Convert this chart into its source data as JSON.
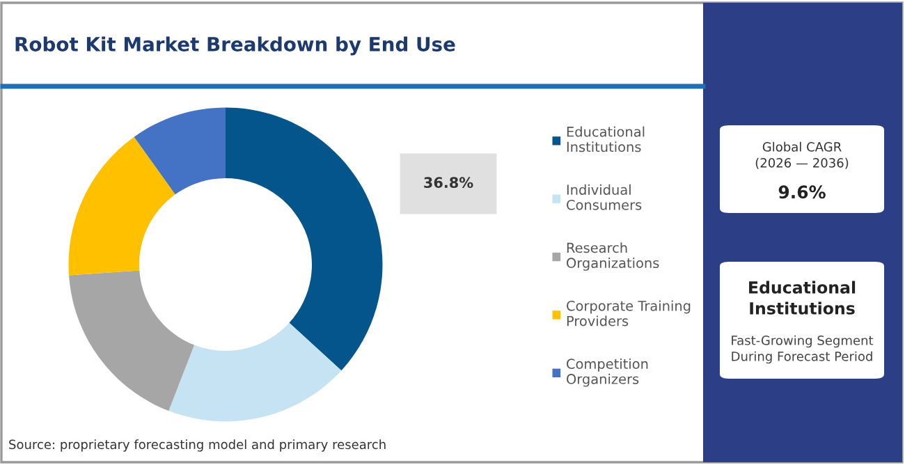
{
  "chart_data": {
    "type": "donut",
    "title": "Robot Kit Market Breakdown by End Use",
    "categories": [
      "Educational Institutions",
      "Individual Consumers",
      "Research Organizations",
      "Corporate Training Providers",
      "Competition Organizers"
    ],
    "values": [
      36.8,
      19.1,
      18.0,
      16.2,
      9.9
    ],
    "colors": [
      "#03558c",
      "#c5e3f2",
      "#a6a6a6",
      "#ffc000",
      "#4472c4"
    ],
    "value_labels": [
      "36.8%",
      null,
      null,
      null,
      null
    ],
    "legend": "right",
    "annotations": [
      "Source: proprietary forecasting model and primary research",
      "Global CAGR\n(2026 — 2036)",
      "9.6%",
      "Educational Institutions",
      "Fast-Growing Segment During Forecast Period"
    ]
  }
}
